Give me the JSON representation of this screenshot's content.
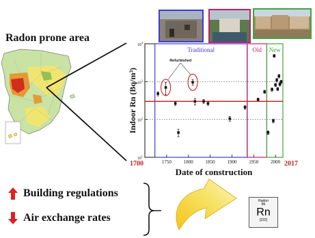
{
  "header": {
    "title": "Radon prone area"
  },
  "photos": [
    {
      "color": "#3b3bd6"
    },
    {
      "color": "#c0206a"
    },
    {
      "color": "#3fa33f"
    }
  ],
  "bullets": [
    {
      "text": "Building regulations",
      "direction": "up",
      "arrow_color": "#e02020"
    },
    {
      "text": "Air exchange rates",
      "direction": "down",
      "arrow_color": "#e02020"
    }
  ],
  "element_tile": {
    "name": "Radon",
    "number": "86",
    "symbol": "Rn",
    "mass": "[222]"
  },
  "chart_data": {
    "type": "scatter",
    "xlabel": "Date of construction",
    "ylabel": "Indoor Rn (Bq/m³)",
    "x_min_label": "1700",
    "x_max_label": "2017",
    "xlim": [
      1700,
      2017
    ],
    "ylog": true,
    "ylim": [
      10,
      10000
    ],
    "xticks": [
      "1750",
      "1800",
      "1850",
      "1900",
      "1950",
      "2000"
    ],
    "yticks": [
      {
        "base": "10",
        "exp": "1"
      },
      {
        "base": "10",
        "exp": "2"
      },
      {
        "base": "10",
        "exp": "3"
      },
      {
        "base": "10",
        "exp": "4"
      }
    ],
    "reference_line": {
      "value": 300,
      "color": "#e02020"
    },
    "dotted_lines": [
      100,
      1000
    ],
    "periods": [
      {
        "label": "Traditional",
        "start": 1723,
        "end": 1935,
        "color": "#3b3bd6"
      },
      {
        "label": "Old",
        "start": 1935,
        "end": 1980,
        "color": "#c0206a"
      },
      {
        "label": "New",
        "start": 1980,
        "end": 2017,
        "color": "#3fa33f"
      }
    ],
    "annotation": {
      "text": "Refurbished"
    },
    "points": [
      {
        "x": 1730,
        "y": 480,
        "err": 60
      },
      {
        "x": 1748,
        "y": 700,
        "err": 250,
        "refurbished": true
      },
      {
        "x": 1770,
        "y": 265,
        "err": 30
      },
      {
        "x": 1777,
        "y": 45,
        "err": 10
      },
      {
        "x": 1810,
        "y": 960,
        "err": 160,
        "refurbished": true
      },
      {
        "x": 1815,
        "y": 300,
        "err": 60
      },
      {
        "x": 1835,
        "y": 300,
        "err": 35
      },
      {
        "x": 1845,
        "y": 265,
        "err": 30
      },
      {
        "x": 1895,
        "y": 105,
        "err": 15
      },
      {
        "x": 1930,
        "y": 210,
        "err": 25
      },
      {
        "x": 1960,
        "y": 340,
        "err": 25
      },
      {
        "x": 1975,
        "y": 540,
        "err": 50
      },
      {
        "x": 1983,
        "y": 45,
        "err": 5
      },
      {
        "x": 1992,
        "y": 620,
        "err": 60
      },
      {
        "x": 1995,
        "y": 92,
        "err": 10
      },
      {
        "x": 1997,
        "y": 4800,
        "err": 400
      },
      {
        "x": 2000,
        "y": 820,
        "err": 80
      },
      {
        "x": 2003,
        "y": 1100,
        "err": 120
      },
      {
        "x": 2005,
        "y": 640,
        "err": 60
      },
      {
        "x": 2008,
        "y": 1400,
        "err": 150
      },
      {
        "x": 2010,
        "y": 850,
        "err": 90
      },
      {
        "x": 2013,
        "y": 990,
        "err": 100
      }
    ]
  }
}
